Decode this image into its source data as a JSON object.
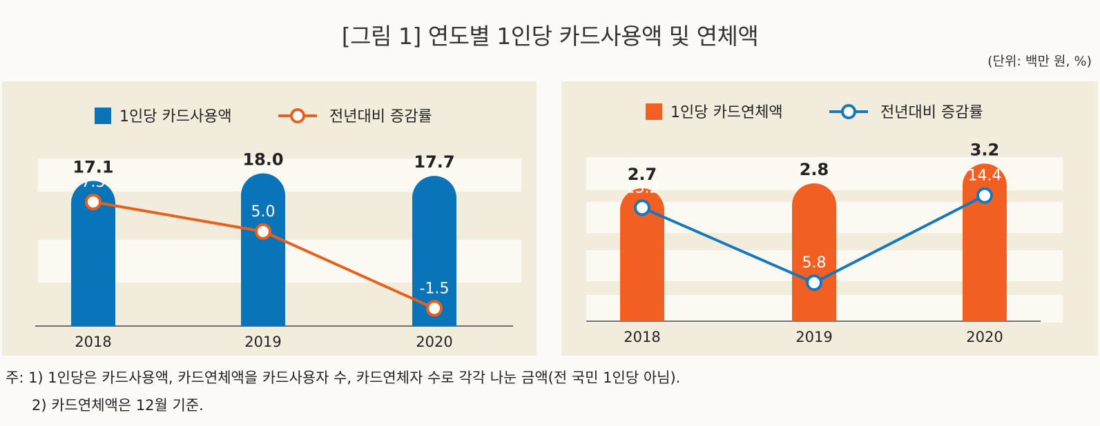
{
  "title": "[그림 1] 연도별 1인당 카드사용액 및 연체액",
  "unit": "(단위: 백만 원, %)",
  "notes": [
    "주: 1) 1인당은 카드사용액, 카드연체액을 카드사용자 수, 카드연체자 수로 각각 나눈 금액(전 국민 1인당 아님).",
    "2) 카드연체액은 12월 기준."
  ],
  "chart_data": [
    {
      "type": "bar",
      "categories": [
        "2018",
        "2019",
        "2020"
      ],
      "series": [
        {
          "name": "1인당 카드사용액",
          "kind": "bar",
          "values": [
            17.1,
            18.0,
            17.7
          ],
          "labels": [
            "17.1",
            "18.0",
            "17.7"
          ],
          "color": "#0a74b9"
        },
        {
          "name": "전년대비 증감률",
          "kind": "line",
          "values": [
            7.5,
            5.0,
            -1.5
          ],
          "labels": [
            "7.5",
            "5.0",
            "-1.5"
          ],
          "color": "#e8601e"
        }
      ],
      "bar_range": [
        0,
        19.5
      ],
      "line_range": [
        -3,
        11
      ],
      "legend_position": "top"
    },
    {
      "type": "bar",
      "categories": [
        "2018",
        "2019",
        "2020"
      ],
      "series": [
        {
          "name": "1인당 카드연체액",
          "kind": "bar",
          "values": [
            2.7,
            2.8,
            3.2
          ],
          "labels": [
            "2.7",
            "2.8",
            "3.2"
          ],
          "color": "#f15f22"
        },
        {
          "name": "전년대비 증감률",
          "kind": "line",
          "values": [
            13.2,
            5.8,
            14.4
          ],
          "labels": [
            "13.2",
            "5.8",
            "14.4"
          ],
          "color": "#1578bf"
        }
      ],
      "bar_range": [
        0,
        3.5
      ],
      "line_range": [
        2,
        19
      ],
      "legend_position": "top"
    }
  ]
}
